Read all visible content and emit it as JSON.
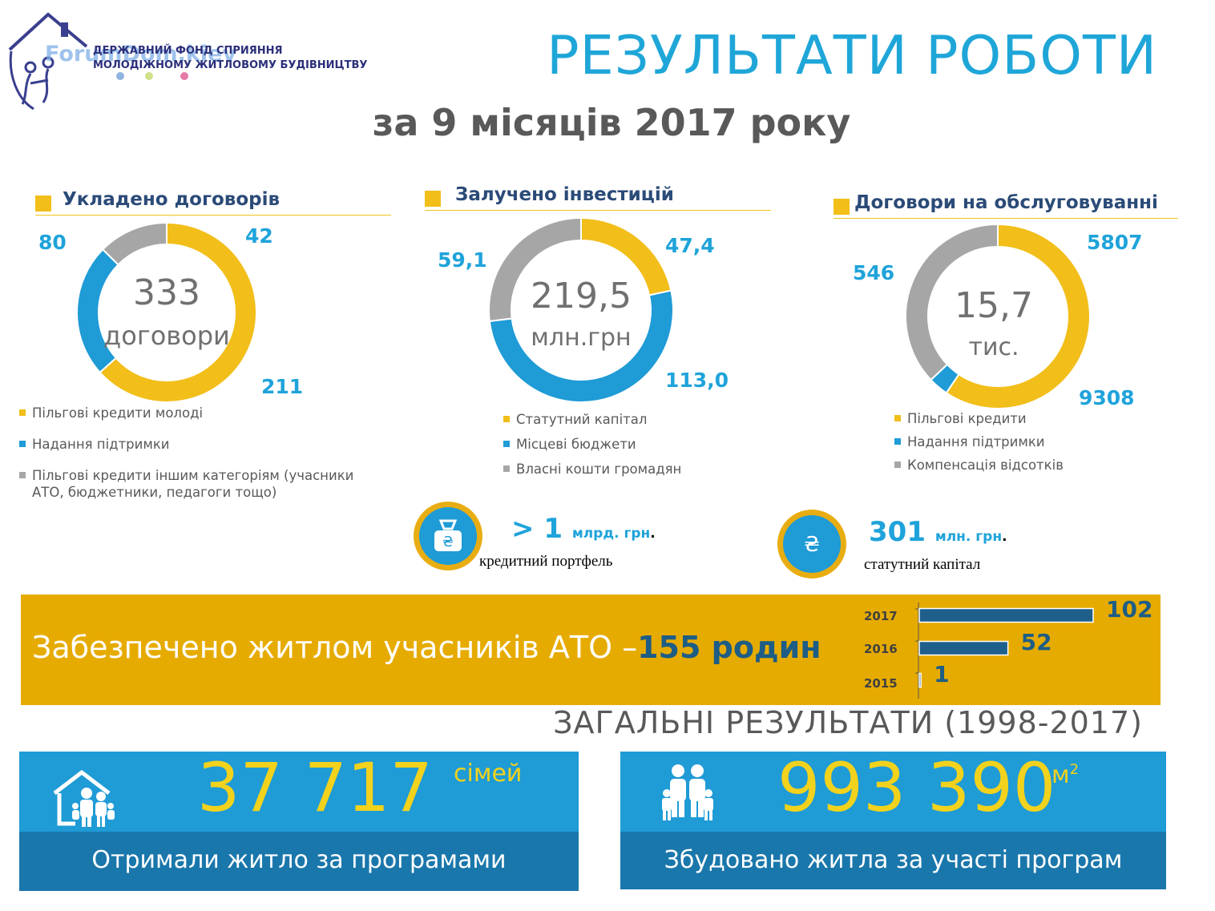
{
  "header": {
    "title": "РЕЗУЛЬТАТИ РОБОТИ",
    "subtitle": "за 9 місяців 2017 року",
    "logo_org_line1": "ДЕРЖАВНИЙ ФОНД СПРИЯННЯ",
    "logo_org_line2": "МОЛОДІЖНОМУ ЖИТЛОВОМУ БУДІВНИЦТВУ",
    "logo_watermark": "ForumDom.kiev"
  },
  "colors": {
    "yellow": "#f2be1a",
    "blue": "#1f9bd6",
    "gray": "#a6a6a6",
    "title_blue": "#1fa6d8",
    "band": "#e6ab00",
    "dark_blue": "#1a77ab"
  },
  "chart_data": [
    {
      "type": "pie",
      "title": "Укладено договорів",
      "center_value": "333",
      "center_unit": "договори",
      "slices": [
        {
          "label": "Пільгові кредити молоді",
          "value": 211,
          "display": "211",
          "color": "#f2be1a"
        },
        {
          "label": "Надання підтримки",
          "value": 80,
          "display": "80",
          "color": "#1f9bd6"
        },
        {
          "label": "Пільгові кредити іншим категоріям (учасники АТО, бюджетники, педагоги тощо)",
          "value": 42,
          "display": "42",
          "color": "#a6a6a6"
        }
      ]
    },
    {
      "type": "pie",
      "title": "Залучено інвестицій",
      "center_value": "219,5",
      "center_unit": "млн.грн",
      "slices": [
        {
          "label": "Статутний капітал",
          "value": 47.4,
          "display": "47,4",
          "color": "#f2be1a"
        },
        {
          "label": "Місцеві бюджети",
          "value": 113.0,
          "display": "113,0",
          "color": "#1f9bd6"
        },
        {
          "label": "Власні кошти громадян",
          "value": 59.1,
          "display": "59,1",
          "color": "#a6a6a6"
        }
      ]
    },
    {
      "type": "pie",
      "title": "Договори на обслуговуванні",
      "center_value": "15,7",
      "center_unit": "тис.",
      "slices": [
        {
          "label": "Пільгові кредити",
          "value": 9308,
          "display": "9308",
          "color": "#f2be1a"
        },
        {
          "label": "Надання підтримки",
          "value": 546,
          "display": "546",
          "color": "#1f9bd6"
        },
        {
          "label": "Компенсація відсотків",
          "value": 5807,
          "display": "5807",
          "color": "#a6a6a6"
        }
      ]
    },
    {
      "type": "bar",
      "orientation": "horizontal",
      "categories": [
        "2017",
        "2016",
        "2015"
      ],
      "values": [
        102,
        52,
        1
      ],
      "xlim": [
        0,
        102
      ]
    }
  ],
  "stats": {
    "portfolio_value": "> 1",
    "portfolio_unit": "млрд. грн",
    "portfolio_dot": ".",
    "portfolio_caption": "кредитний портфель",
    "capital_value": "301",
    "capital_unit": "млн. грн",
    "capital_dot": ".",
    "capital_caption": "статутний капітал",
    "currency_glyph": "₴"
  },
  "ato": {
    "text": "Забезпечено житлом учасників АТО –",
    "highlight": "155 родин"
  },
  "totals": {
    "title": "ЗАГАЛЬНІ  РЕЗУЛЬТАТИ (1998-2017)",
    "families_value": "37 717",
    "families_unit": "сімей",
    "families_caption": "Отримали житло за програмами",
    "area_value": "993 390",
    "area_unit": "м",
    "area_sup": "2",
    "area_caption": "Збудовано житла за участі програм"
  },
  "icons": {
    "logo": "house-family-logo-icon",
    "portfolio": "money-bag-icon",
    "capital": "hryvnia-coin-icon",
    "families": "house-family-icon",
    "area": "family-icon"
  }
}
